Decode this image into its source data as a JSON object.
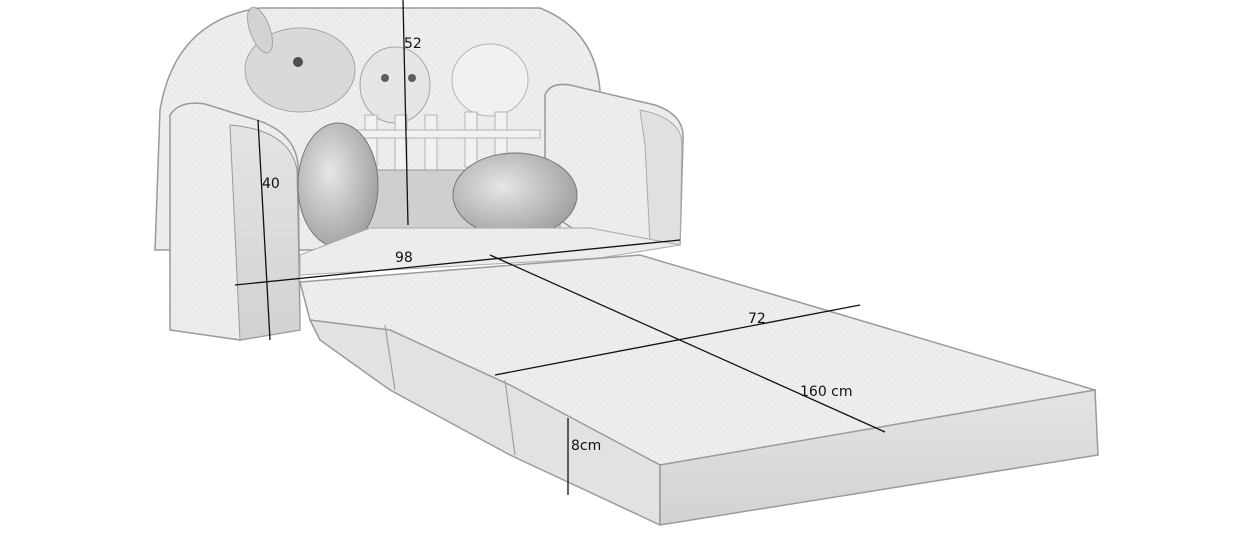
{
  "dimensions": {
    "backrest_height": "52",
    "armrest_height": "40",
    "seat_width": "98",
    "bed_width": "72",
    "bed_length": "160 cm",
    "mattress_thickness": "8cm"
  },
  "colors": {
    "fabric_fill": "#ececec",
    "fabric_shade": "#cfcfcf",
    "outline": "#8a8a8a",
    "dimension_line": "#111111"
  }
}
